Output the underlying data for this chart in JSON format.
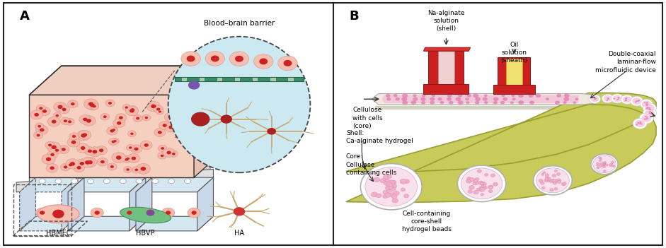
{
  "panel_A_label": "A",
  "panel_B_label": "B",
  "bbb_label": "Blood–brain barrier",
  "hbmec_label": "HBMEC",
  "hbvp_label": "HBVP",
  "ha_label": "HA",
  "na_alginate_label": "Na-alginate\nsolution\n(shell)",
  "oil_solution_label": "Oil\nsolution\n(sheath)",
  "cellulose_label": "Cellulose\nwith cells\n(core)",
  "device_label": "Double-coaxial\nlaminar-flow\nmicrofluidic device",
  "shell_label": "Shell:\nCa-alginate hydrogel",
  "core_label": "Core:\nCellulose\ncontaining cells",
  "bead_label": "Cell-containing\ncore-shell\nhydrogel beads",
  "bg_color": "#ffffff",
  "border_color": "#222222",
  "salmon_light": "#f5cfc0",
  "salmon_cell": "#f0b0a0",
  "red_dot": "#cc2222",
  "blue_light": "#cce8f0",
  "olive_color": "#c8cc60",
  "pink_bead": "#f0c8d8",
  "pink_dot": "#e090b8",
  "dark_red_nozzle": "#bb2020",
  "nozzle_red": "#cc2020",
  "yellow_nozzle": "#f0e070",
  "teal_membrane": "#3a8a6a",
  "gray_membrane": "#888888"
}
